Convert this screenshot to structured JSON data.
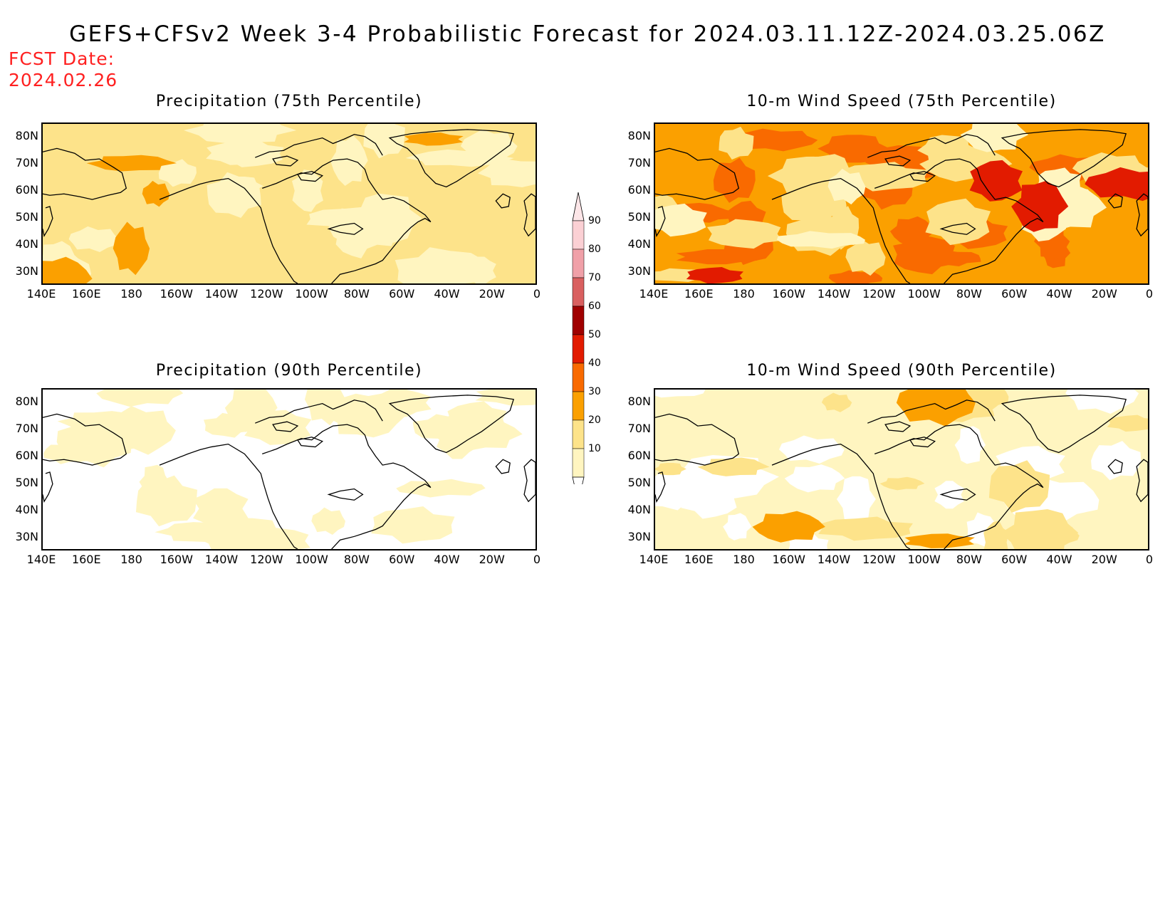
{
  "header": {
    "title": "GEFS+CFSv2 Week 3-4 Probabilistic Forecast for 2024.03.11.12Z-2024.03.25.06Z",
    "fcst_label": "FCST Date:",
    "fcst_value": "2024.02.26"
  },
  "panels": [
    {
      "id": "precip-75",
      "title": "Precipitation (75th Percentile)",
      "level": 1
    },
    {
      "id": "wind-75",
      "title": "10-m Wind Speed (75th Percentile)",
      "level": 3
    },
    {
      "id": "precip-90",
      "title": "Precipitation (90th Percentile)",
      "level": 0
    },
    {
      "id": "wind-90",
      "title": "10-m Wind Speed (90th Percentile)",
      "level": 0.5
    }
  ],
  "axes": {
    "lat_ticks": [
      "80N",
      "70N",
      "60N",
      "50N",
      "40N",
      "30N"
    ],
    "lon_ticks": [
      "140E",
      "160E",
      "180",
      "160W",
      "140W",
      "120W",
      "100W",
      "80W",
      "60W",
      "40W",
      "20W",
      "0"
    ]
  },
  "colorbar": {
    "labels": [
      "10",
      "20",
      "30",
      "40",
      "50",
      "60",
      "70",
      "80",
      "90"
    ],
    "colors": [
      "#fff5c0",
      "#fde38a",
      "#fba000",
      "#f96a00",
      "#e21b00",
      "#a00000",
      "#d96060",
      "#f0a0a8",
      "#fbd0d4"
    ]
  }
}
